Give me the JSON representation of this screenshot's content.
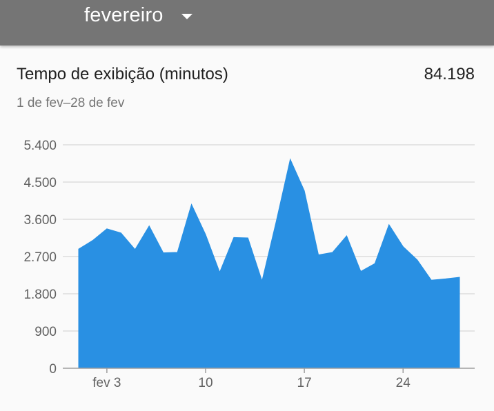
{
  "header": {
    "month_label": "fevereiro",
    "dropdown_icon": "caret-down-icon"
  },
  "card": {
    "title": "Tempo de exibição (minutos)",
    "total": "84.198",
    "date_range": "1 de fev–28 de fev"
  },
  "chart_data": {
    "type": "area",
    "title": "Tempo de exibição (minutos)",
    "xlabel": "",
    "ylabel": "",
    "x": [
      1,
      2,
      3,
      4,
      5,
      6,
      7,
      8,
      9,
      10,
      11,
      12,
      13,
      14,
      15,
      16,
      17,
      18,
      19,
      20,
      21,
      22,
      23,
      24,
      25,
      26,
      27,
      28
    ],
    "series": [
      {
        "values": [
          2880,
          3090,
          3370,
          3270,
          2870,
          3440,
          2790,
          2800,
          3960,
          3230,
          2320,
          3160,
          3150,
          2110,
          3540,
          5050,
          4290,
          2740,
          2800,
          3200,
          2340,
          2530,
          3470,
          2940,
          2620,
          2130,
          2160,
          2200
        ]
      }
    ],
    "ylim": [
      0,
      5400
    ],
    "yticks": [
      0,
      900,
      1800,
      2700,
      3600,
      4500,
      5400
    ],
    "ytick_labels": [
      "0",
      "900",
      "1.800",
      "2.700",
      "3.600",
      "4.500",
      "5.400"
    ],
    "xticks": [
      3,
      10,
      17,
      24
    ],
    "xtick_labels": [
      "fev 3",
      "10",
      "17",
      "24"
    ],
    "grid": true,
    "color": "#2990e3",
    "grid_color": "#dcdcdc",
    "axis_color": "#9e9e9e"
  }
}
